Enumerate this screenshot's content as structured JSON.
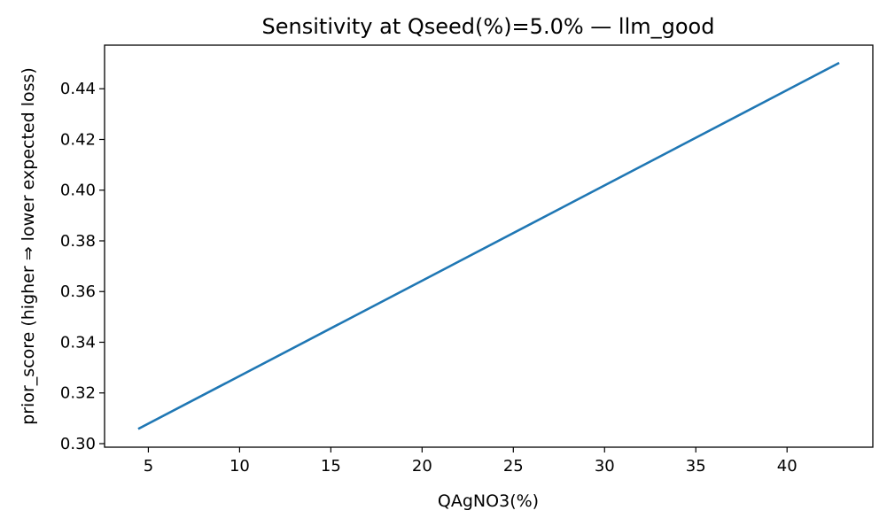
{
  "chart_data": {
    "type": "line",
    "title": "Sensitivity at Qseed(%)=5.0% — llm_good",
    "xlabel": "QAgNO3(%)",
    "ylabel": "prior_score (higher ⇒ lower expected loss)",
    "xlim": [
      2.6,
      44.7
    ],
    "ylim": [
      0.2986,
      0.4572
    ],
    "xticks": [
      5,
      10,
      15,
      20,
      25,
      30,
      35,
      40
    ],
    "xtick_labels": [
      "5",
      "10",
      "15",
      "20",
      "25",
      "30",
      "35",
      "40"
    ],
    "yticks": [
      0.3,
      0.32,
      0.34,
      0.36,
      0.38,
      0.4,
      0.42,
      0.44
    ],
    "ytick_labels": [
      "0.30",
      "0.32",
      "0.34",
      "0.36",
      "0.38",
      "0.40",
      "0.42",
      "0.44"
    ],
    "grid": false,
    "series": [
      {
        "name": "llm_good",
        "color": "#1f77b4",
        "x": [
          4.5,
          42.8
        ],
        "y": [
          0.306,
          0.45
        ]
      }
    ]
  }
}
